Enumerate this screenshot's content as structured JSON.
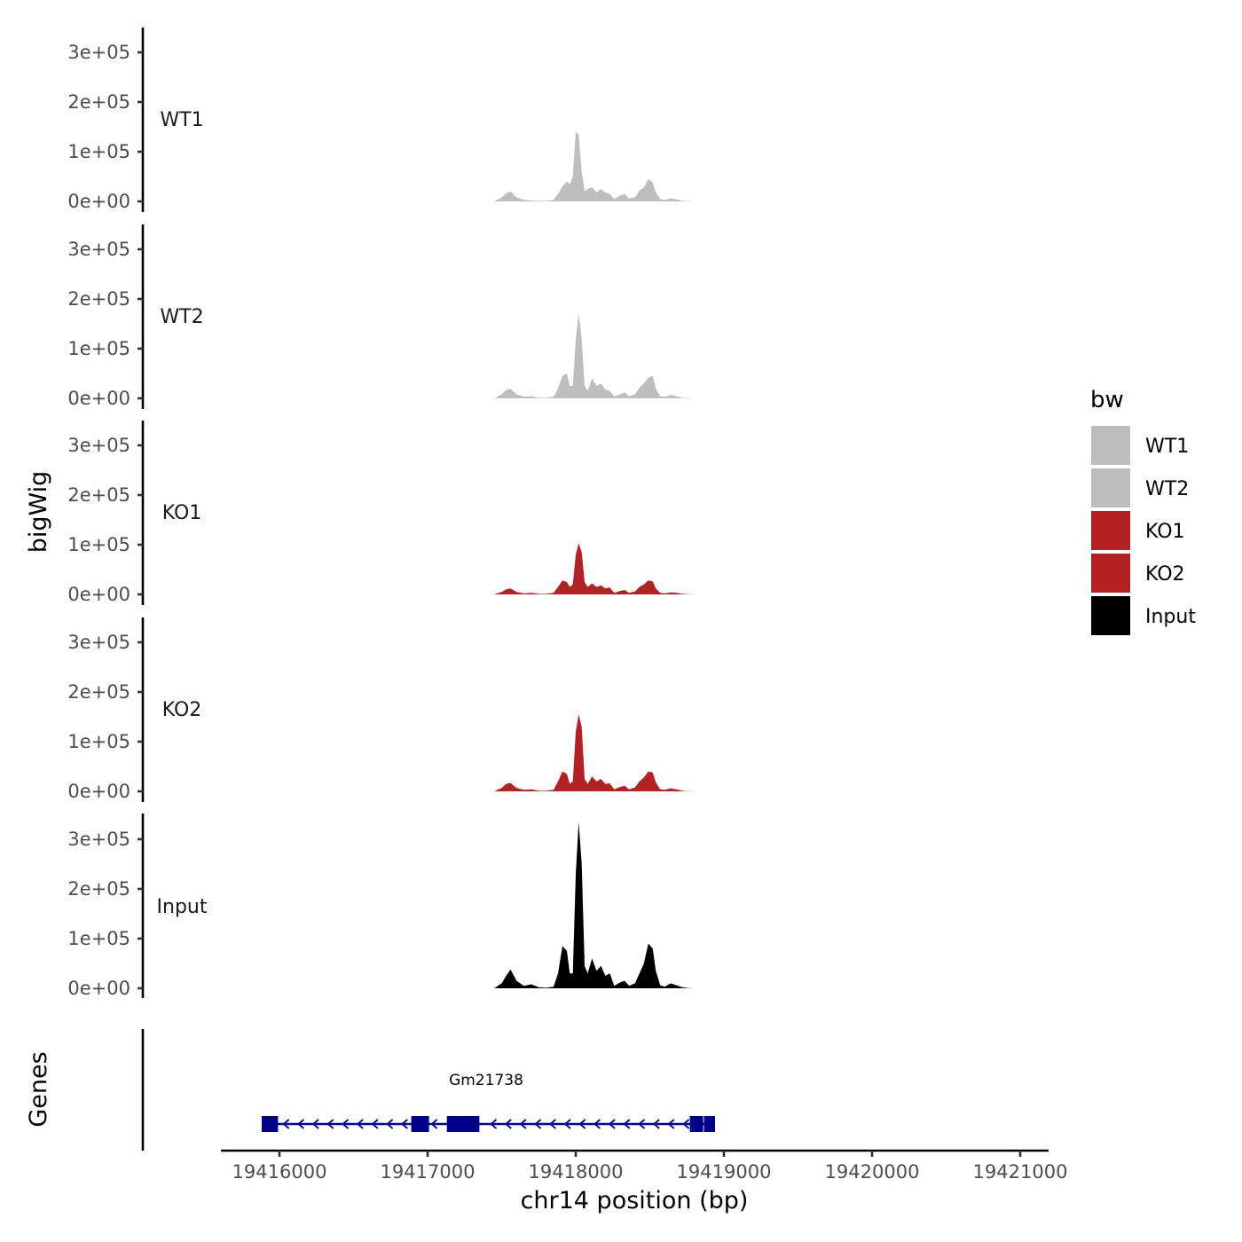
{
  "chart_data": {
    "type": "area",
    "xlabel": "chr14 position (bp)",
    "ylabel_tracks": "bigWig",
    "ylabel_genes": "Genes",
    "xlim": [
      19415600,
      19421200
    ],
    "x_ticks": [
      19416000,
      19417000,
      19418000,
      19419000,
      19420000,
      19421000
    ],
    "x_tick_labels": [
      "19416000",
      "19417000",
      "19418000",
      "19419000",
      "19420000",
      "19421000"
    ],
    "ylim": [
      0,
      340000
    ],
    "y_ticks": [
      0,
      100000,
      200000,
      300000
    ],
    "y_tick_labels": [
      "0e+00",
      "1e+05",
      "2e+05",
      "3e+05"
    ],
    "grid": false,
    "legend": {
      "title": "bw",
      "placement": "right",
      "items": [
        {
          "label": "WT1",
          "color": "#bebebe"
        },
        {
          "label": "WT2",
          "color": "#bebebe"
        },
        {
          "label": "KO1",
          "color": "#b22222"
        },
        {
          "label": "KO2",
          "color": "#b22222"
        },
        {
          "label": "Input",
          "color": "#000000"
        }
      ]
    },
    "x": [
      19417450,
      19417500,
      19417530,
      19417560,
      19417600,
      19417650,
      19417700,
      19417750,
      19417800,
      19417850,
      19417880,
      19417910,
      19417940,
      19417960,
      19417980,
      19418000,
      19418020,
      19418040,
      19418060,
      19418080,
      19418110,
      19418140,
      19418170,
      19418200,
      19418230,
      19418260,
      19418300,
      19418330,
      19418360,
      19418400,
      19418430,
      19418460,
      19418490,
      19418520,
      19418540,
      19418570,
      19418600,
      19418640,
      19418680,
      19418720,
      19418760,
      19418800,
      19418850
    ],
    "series": [
      {
        "name": "WT1",
        "color": "#bebebe",
        "values": [
          0,
          8000,
          16000,
          20000,
          8000,
          3000,
          2000,
          1000,
          1000,
          3000,
          15000,
          30000,
          40000,
          35000,
          50000,
          140000,
          135000,
          60000,
          20000,
          25000,
          28000,
          18000,
          25000,
          18000,
          15000,
          5000,
          12000,
          15000,
          6000,
          8000,
          22000,
          28000,
          45000,
          38000,
          18000,
          5000,
          3000,
          6000,
          4000,
          1000,
          500,
          0,
          0
        ]
      },
      {
        "name": "WT2",
        "color": "#bebebe",
        "values": [
          0,
          8000,
          17000,
          19000,
          8000,
          3000,
          4000,
          1000,
          1000,
          3000,
          20000,
          45000,
          50000,
          25000,
          25000,
          120000,
          170000,
          120000,
          25000,
          15000,
          40000,
          25000,
          30000,
          18000,
          15000,
          4000,
          8000,
          12000,
          4000,
          8000,
          22000,
          30000,
          42000,
          45000,
          20000,
          4000,
          3000,
          7000,
          4000,
          1000,
          500,
          0,
          0
        ]
      },
      {
        "name": "KO1",
        "color": "#b22222",
        "values": [
          0,
          5000,
          10000,
          12000,
          5000,
          2000,
          3000,
          1000,
          1000,
          3000,
          15000,
          28000,
          25000,
          15000,
          20000,
          80000,
          103000,
          85000,
          25000,
          15000,
          22000,
          15000,
          18000,
          12000,
          14000,
          3000,
          7000,
          9000,
          3000,
          6000,
          15000,
          20000,
          28000,
          26000,
          12000,
          3000,
          2000,
          4000,
          3000,
          1000,
          500,
          0,
          0
        ]
      },
      {
        "name": "KO2",
        "color": "#b22222",
        "values": [
          0,
          7000,
          15000,
          17000,
          7000,
          3000,
          4000,
          1000,
          1000,
          3000,
          20000,
          40000,
          35000,
          15000,
          20000,
          120000,
          155000,
          130000,
          25000,
          15000,
          30000,
          20000,
          25000,
          15000,
          16000,
          4000,
          9000,
          11000,
          4000,
          8000,
          20000,
          28000,
          40000,
          38000,
          18000,
          4000,
          3000,
          6000,
          4000,
          1000,
          500,
          0,
          0
        ]
      },
      {
        "name": "Input",
        "color": "#000000",
        "values": [
          0,
          10000,
          25000,
          38000,
          15000,
          5000,
          8000,
          2000,
          1000,
          3000,
          30000,
          85000,
          75000,
          30000,
          30000,
          230000,
          335000,
          250000,
          45000,
          30000,
          60000,
          35000,
          45000,
          25000,
          30000,
          5000,
          12000,
          15000,
          5000,
          10000,
          30000,
          50000,
          90000,
          80000,
          35000,
          6000,
          3000,
          10000,
          6000,
          2000,
          500,
          0,
          0
        ]
      }
    ],
    "genes": {
      "name": "Gm21738",
      "color": "#00008b",
      "strand": "-",
      "start": 19415880,
      "end": 19418940,
      "exons": [
        [
          19415880,
          19415990
        ],
        [
          19416890,
          19417010
        ],
        [
          19417130,
          19417350
        ],
        [
          19418770,
          19418860
        ],
        [
          19418865,
          19418940
        ]
      ]
    }
  }
}
